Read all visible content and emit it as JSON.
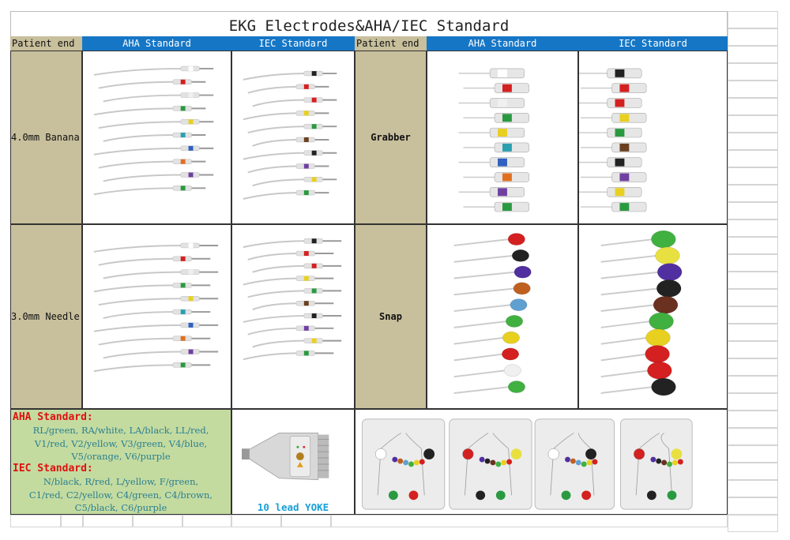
{
  "title": "EKG Electrodes&AHA/IEC Standard",
  "headers": [
    "Patient end",
    "AHA Standard",
    "IEC Standard",
    "Patient end",
    "AHA Standard",
    "IEC Standard"
  ],
  "rows": [
    {
      "left_label": "4.0mm Banana",
      "right_label": "Grabber"
    },
    {
      "left_label": "3.0mm Needle",
      "right_label": "Snap"
    }
  ],
  "standards": {
    "aha_heading": "AHA Standard:",
    "aha_lines": [
      "RL/green, RA/white, LA/black, LL/red,",
      "V1/red, V2/yellow, V3/green, V4/blue,",
      "V5/orange, V6/purple"
    ],
    "iec_heading": "IEC Standard:",
    "iec_lines": [
      "N/black, R/red, L/yellow, F/green,",
      "C1/red, C2/yellow, C4/green, C4/brown,",
      "C5/black, C6/purple"
    ]
  },
  "yoke_label": "10 lead YOKE",
  "colors": {
    "header_blue": "#1676c6",
    "label_tan": "#c8bf9c",
    "standard_green": "#c4dba0",
    "heading_red": "#e01010",
    "body_teal": "#2a7f90",
    "aha_leads": [
      "#ffffff",
      "#d42020",
      "#f0f0f0",
      "#2a9a40",
      "#e8d020",
      "#2aa0b0",
      "#3060c0",
      "#e07020",
      "#7040a0",
      "#2a9a40"
    ],
    "iec_leads": [
      "#222222",
      "#d42020",
      "#d42020",
      "#e8d020",
      "#2a9a40",
      "#6a4020",
      "#222222",
      "#7040a0",
      "#e8d020",
      "#2a9a40"
    ],
    "aha_snap": [
      "#d42020",
      "#222222",
      "#5030a0",
      "#c06020",
      "#60a0d0",
      "#40b040",
      "#e8d020",
      "#d42020",
      "#f0f0f0",
      "#40b040"
    ],
    "iec_snap": [
      "#40b040",
      "#e8e040",
      "#5030a0",
      "#222222",
      "#6a3020",
      "#40b040",
      "#e8d020",
      "#d42020",
      "#d42020",
      "#222222"
    ]
  }
}
